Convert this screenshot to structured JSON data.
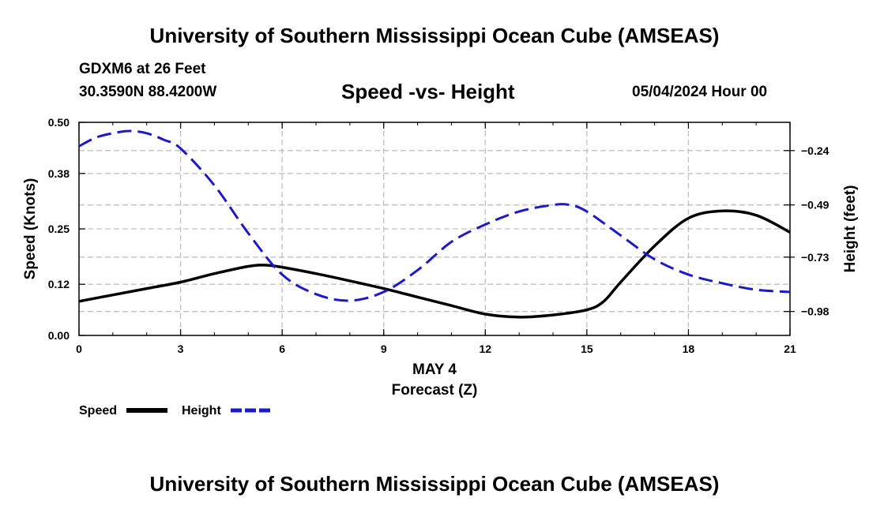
{
  "header": {
    "title_top": "University of Southern Mississippi Ocean Cube (AMSEAS)",
    "station": "GDXM6 at 26 Feet",
    "coords": "30.3590N  88.4200W",
    "chart_title": "Speed -vs- Height",
    "datetime": "05/04/2024 Hour 00",
    "title_bottom": "University of Southern Mississippi Ocean Cube (AMSEAS)"
  },
  "colors": {
    "speed": "#000000",
    "height": "#1a1acc",
    "grid": "#c0c0c0"
  },
  "chart_data": {
    "type": "line",
    "title": "Speed -vs- Height",
    "xlabel": "Forecast (Z)",
    "xlabel_date": "MAY 4",
    "ylabel_left": "Speed (Knots)",
    "ylabel_right": "Height (feet)",
    "x_ticks": [
      "0",
      "3",
      "6",
      "9",
      "12",
      "15",
      "18",
      "21"
    ],
    "xlim": [
      0,
      21
    ],
    "y_left_ticks": [
      "0.00",
      "0.12",
      "0.25",
      "0.38",
      "0.50"
    ],
    "y_left_lim": [
      0,
      0.5
    ],
    "y_right_ticks": [
      "-0.24",
      "-0.49",
      "-0.73",
      "-0.98"
    ],
    "y_right_lim": [
      -1.09,
      -0.11
    ],
    "series": [
      {
        "name": "Speed",
        "axis": "left",
        "style": "solid",
        "x": [
          0,
          1,
          2,
          3,
          4,
          5,
          5.5,
          6,
          7,
          8,
          9,
          10,
          11,
          12,
          13,
          14,
          15,
          15.5,
          16,
          17,
          18,
          19,
          20,
          21
        ],
        "values": [
          0.08,
          0.095,
          0.11,
          0.125,
          0.145,
          0.162,
          0.165,
          0.16,
          0.145,
          0.128,
          0.11,
          0.09,
          0.07,
          0.05,
          0.043,
          0.048,
          0.06,
          0.08,
          0.125,
          0.21,
          0.275,
          0.292,
          0.282,
          0.242
        ]
      },
      {
        "name": "Height",
        "axis": "right",
        "style": "dashed",
        "x": [
          0,
          0.5,
          1,
          1.5,
          2,
          2.5,
          3,
          4,
          5,
          6,
          7,
          8,
          9,
          10,
          11,
          12,
          13,
          14,
          14.5,
          15,
          16,
          17,
          18,
          19,
          20,
          21
        ],
        "values": [
          -0.22,
          -0.18,
          -0.16,
          -0.15,
          -0.16,
          -0.19,
          -0.23,
          -0.4,
          -0.62,
          -0.81,
          -0.9,
          -0.93,
          -0.89,
          -0.79,
          -0.66,
          -0.58,
          -0.52,
          -0.49,
          -0.49,
          -0.52,
          -0.63,
          -0.74,
          -0.81,
          -0.85,
          -0.88,
          -0.89
        ]
      }
    ],
    "legend": [
      {
        "label": "Speed",
        "style": "solid"
      },
      {
        "label": "Height",
        "style": "dashed"
      }
    ]
  }
}
